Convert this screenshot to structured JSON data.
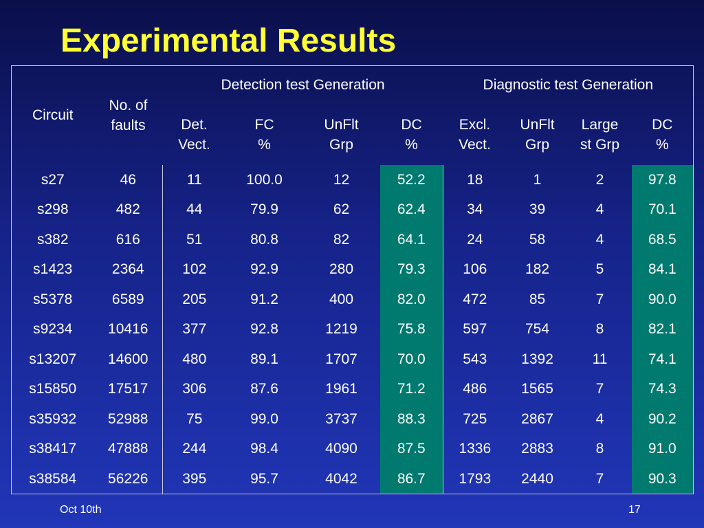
{
  "title": "Experimental Results",
  "headers": {
    "circuit": "Circuit",
    "faults": [
      "No. of",
      "faults"
    ],
    "detection_group": "Detection test Generation",
    "diagnostic_group": "Diagnostic test Generation",
    "det_vect": [
      "Det.",
      "Vect."
    ],
    "fc": [
      "FC",
      "%"
    ],
    "unflt_grp": [
      "UnFlt",
      "Grp"
    ],
    "dc": [
      "DC",
      "%"
    ],
    "excl_vect": [
      "Excl.",
      "Vect."
    ],
    "unflt_grp2": [
      "UnFlt",
      "Grp"
    ],
    "largest_grp": [
      "Large",
      "st Grp"
    ],
    "dc2": [
      "DC",
      "%"
    ]
  },
  "rows": [
    [
      "s27",
      "46",
      "11",
      "100.0",
      "12",
      "52.2",
      "18",
      "1",
      "2",
      "97.8"
    ],
    [
      "s298",
      "482",
      "44",
      "79.9",
      "62",
      "62.4",
      "34",
      "39",
      "4",
      "70.1"
    ],
    [
      "s382",
      "616",
      "51",
      "80.8",
      "82",
      "64.1",
      "24",
      "58",
      "4",
      "68.5"
    ],
    [
      "s1423",
      "2364",
      "102",
      "92.9",
      "280",
      "79.3",
      "106",
      "182",
      "5",
      "84.1"
    ],
    [
      "s5378",
      "6589",
      "205",
      "91.2",
      "400",
      "82.0",
      "472",
      "85",
      "7",
      "90.0"
    ],
    [
      "s9234",
      "10416",
      "377",
      "92.8",
      "1219",
      "75.8",
      "597",
      "754",
      "8",
      "82.1"
    ],
    [
      "s13207",
      "14600",
      "480",
      "89.1",
      "1707",
      "70.0",
      "543",
      "1392",
      "11",
      "74.1"
    ],
    [
      "s15850",
      "17517",
      "306",
      "87.6",
      "1961",
      "71.2",
      "486",
      "1565",
      "7",
      "74.3"
    ],
    [
      "s35932",
      "52988",
      "75",
      "99.0",
      "3737",
      "88.3",
      "725",
      "2867",
      "4",
      "90.2"
    ],
    [
      "s38417",
      "47888",
      "244",
      "98.4",
      "4090",
      "87.5",
      "1336",
      "2883",
      "8",
      "91.0"
    ],
    [
      "s38584",
      "56226",
      "395",
      "95.7",
      "4042",
      "86.7",
      "1793",
      "2440",
      "7",
      "90.3"
    ]
  ],
  "footer": {
    "date": "Oct  10th",
    "page": "17"
  },
  "colors": {
    "title": "#ffff33",
    "dc_highlight": "#007a6e",
    "background_top": "#0a0f4a",
    "background_bottom": "#2136b8"
  }
}
